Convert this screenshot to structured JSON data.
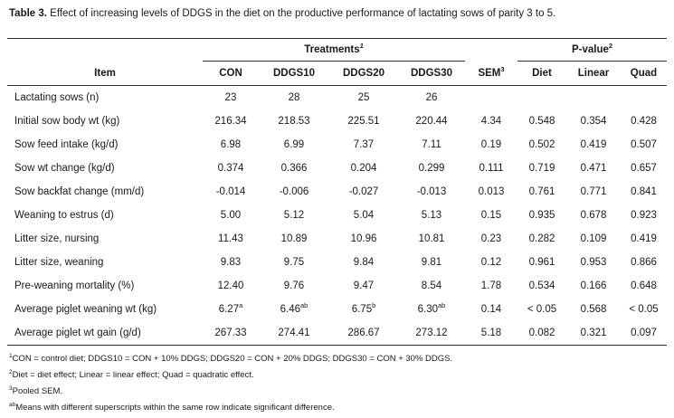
{
  "caption": {
    "label": "Table 3.",
    "text": " Effect of increasing levels of DDGS in the diet on the productive performance of lactating sows of parity 3 to 5."
  },
  "header": {
    "treatments_label": "Treatments",
    "treatments_sup": "1",
    "pvalue_label": "P-value",
    "pvalue_sup": "2",
    "item_label": "Item",
    "con": "CON",
    "ddgs10": "DDGS10",
    "ddgs20": "DDGS20",
    "ddgs30": "DDGS30",
    "sem": "SEM",
    "sem_sup": "3",
    "diet": "Diet",
    "linear": "Linear",
    "quad": "Quad"
  },
  "rows": [
    {
      "item": "Lactating sows (n)",
      "con": "23",
      "con_sup": "",
      "d10": "28",
      "d10_sup": "",
      "d20": "25",
      "d20_sup": "",
      "d30": "26",
      "d30_sup": "",
      "sem": "",
      "diet": "",
      "linear": "",
      "quad": ""
    },
    {
      "item": "Initial sow body wt (kg)",
      "con": "216.34",
      "con_sup": "",
      "d10": "218.53",
      "d10_sup": "",
      "d20": "225.51",
      "d20_sup": "",
      "d30": "220.44",
      "d30_sup": "",
      "sem": "4.34",
      "diet": "0.548",
      "linear": "0.354",
      "quad": "0.428"
    },
    {
      "item": "Sow feed intake (kg/d)",
      "con": "6.98",
      "con_sup": "",
      "d10": "6.99",
      "d10_sup": "",
      "d20": "7.37",
      "d20_sup": "",
      "d30": "7.11",
      "d30_sup": "",
      "sem": "0.19",
      "diet": "0.502",
      "linear": "0.419",
      "quad": "0.507"
    },
    {
      "item": "Sow wt change (kg/d)",
      "con": "0.374",
      "con_sup": "",
      "d10": "0.366",
      "d10_sup": "",
      "d20": "0.204",
      "d20_sup": "",
      "d30": "0.299",
      "d30_sup": "",
      "sem": "0.111",
      "diet": "0.719",
      "linear": "0.471",
      "quad": "0.657"
    },
    {
      "item": "Sow backfat change (mm/d)",
      "con": "-0.014",
      "con_sup": "",
      "d10": "-0.006",
      "d10_sup": "",
      "d20": "-0.027",
      "d20_sup": "",
      "d30": "-0.013",
      "d30_sup": "",
      "sem": "0.013",
      "diet": "0.761",
      "linear": "0.771",
      "quad": "0.841"
    },
    {
      "item": "Weaning to estrus (d)",
      "con": "5.00",
      "con_sup": "",
      "d10": "5.12",
      "d10_sup": "",
      "d20": "5.04",
      "d20_sup": "",
      "d30": "5.13",
      "d30_sup": "",
      "sem": "0.15",
      "diet": "0.935",
      "linear": "0.678",
      "quad": "0.923"
    },
    {
      "item": "Litter size, nursing",
      "con": "11.43",
      "con_sup": "",
      "d10": "10.89",
      "d10_sup": "",
      "d20": "10.96",
      "d20_sup": "",
      "d30": "10.81",
      "d30_sup": "",
      "sem": "0.23",
      "diet": "0.282",
      "linear": "0.109",
      "quad": "0.419"
    },
    {
      "item": "Litter size, weaning",
      "con": "9.83",
      "con_sup": "",
      "d10": "9.75",
      "d10_sup": "",
      "d20": "9.84",
      "d20_sup": "",
      "d30": "9.81",
      "d30_sup": "",
      "sem": "0.12",
      "diet": "0.961",
      "linear": "0.953",
      "quad": "0.866"
    },
    {
      "item": "Pre-weaning mortality (%)",
      "con": "12.40",
      "con_sup": "",
      "d10": "9.76",
      "d10_sup": "",
      "d20": "9.47",
      "d20_sup": "",
      "d30": "8.54",
      "d30_sup": "",
      "sem": "1.78",
      "diet": "0.534",
      "linear": "0.166",
      "quad": "0.648"
    },
    {
      "item": "Average piglet weaning wt (kg)",
      "con": "6.27",
      "con_sup": "a",
      "d10": "6.46",
      "d10_sup": "ab",
      "d20": "6.75",
      "d20_sup": "b",
      "d30": "6.30",
      "d30_sup": "ab",
      "sem": "0.14",
      "diet": "< 0.05",
      "linear": "0.568",
      "quad": "< 0.05"
    },
    {
      "item": "Average piglet wt gain (g/d)",
      "con": "267.33",
      "con_sup": "",
      "d10": "274.41",
      "d10_sup": "",
      "d20": "286.67",
      "d20_sup": "",
      "d30": "273.12",
      "d30_sup": "",
      "sem": "5.18",
      "diet": "0.082",
      "linear": "0.321",
      "quad": "0.097"
    }
  ],
  "notes": [
    {
      "sup": "1",
      "text": "CON = control diet; DDGS10 = CON + 10% DDGS; DDGS20 = CON + 20% DDGS; DDGS30 = CON + 30% DDGS."
    },
    {
      "sup": "2",
      "text": "Diet = diet effect; Linear = linear effect; Quad = quadratic effect."
    },
    {
      "sup": "3",
      "text": "Pooled SEM."
    },
    {
      "sup": "ab",
      "text": "Means with different superscripts within the same row indicate significant difference."
    }
  ]
}
